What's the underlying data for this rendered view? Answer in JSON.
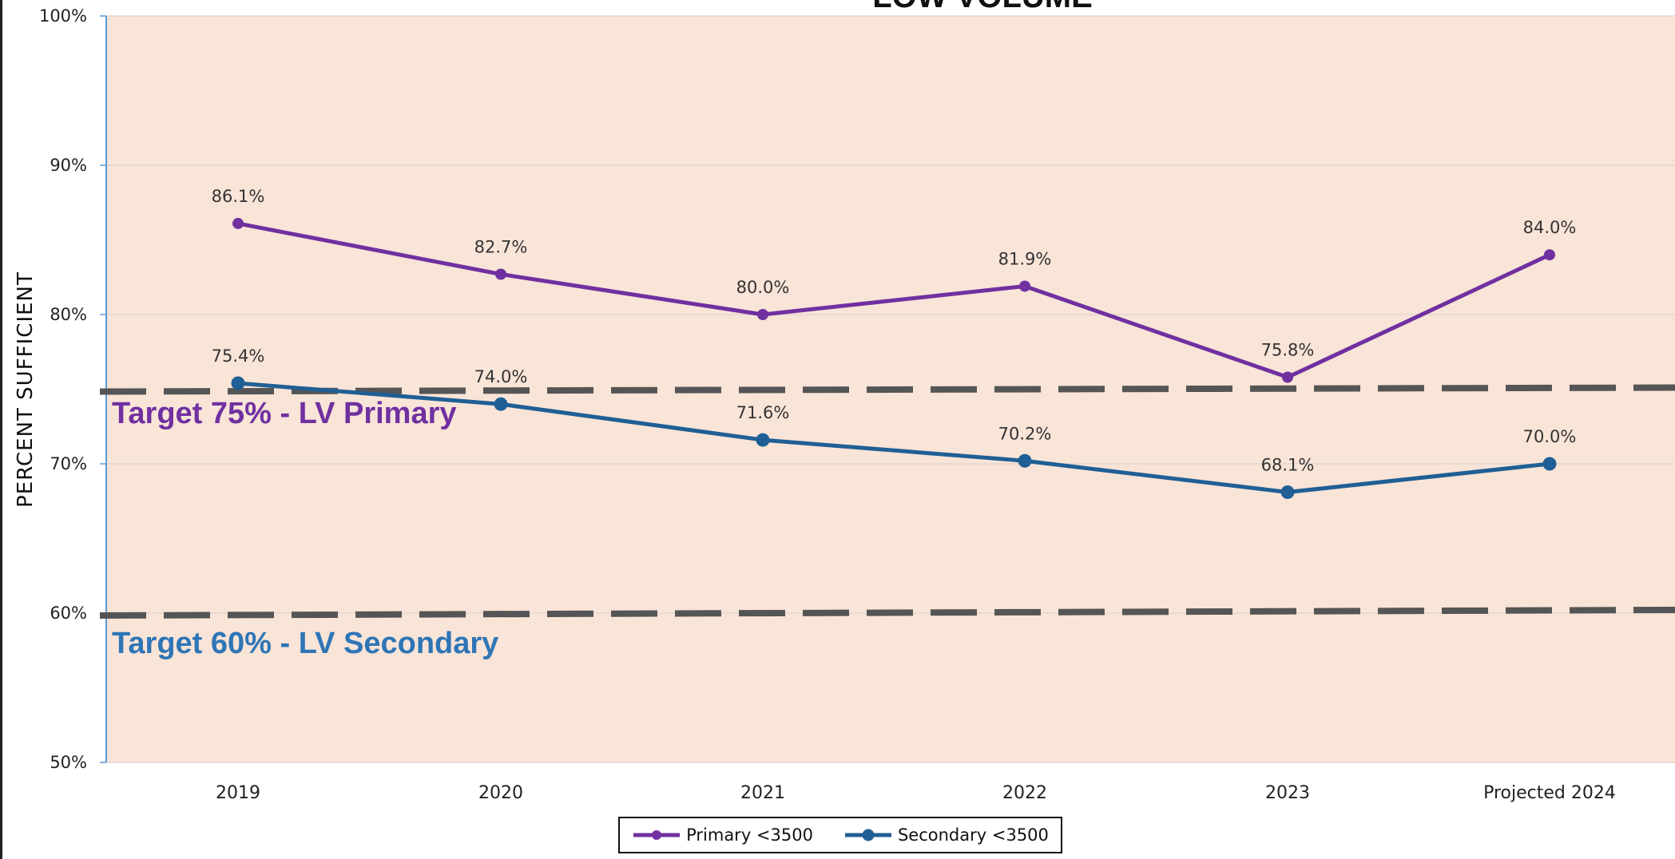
{
  "chart_data": {
    "type": "line",
    "title": "LOW VOLUME",
    "ylabel": "PERCENT SUFFICIENT",
    "xlabel": "",
    "categories": [
      "2019",
      "2020",
      "2021",
      "2022",
      "2023",
      "Projected 2024"
    ],
    "ylim": [
      50,
      100
    ],
    "yticks": [
      "50%",
      "60%",
      "70%",
      "80%",
      "90%",
      "100%"
    ],
    "ytick_values": [
      50,
      60,
      70,
      80,
      90,
      100
    ],
    "grid": true,
    "legend_position": "bottom-center",
    "series": [
      {
        "name": "Primary <3500",
        "values": [
          86.1,
          82.7,
          80.0,
          81.9,
          75.8,
          84.0
        ],
        "labels": [
          "86.1%",
          "82.7%",
          "80.0%",
          "81.9%",
          "75.8%",
          "84.0%"
        ],
        "color": "#7030A0"
      },
      {
        "name": "Secondary <3500",
        "values": [
          75.4,
          74.0,
          71.6,
          70.2,
          68.1,
          70.0
        ],
        "labels": [
          "75.4%",
          "74.0%",
          "71.6%",
          "70.2%",
          "68.1%",
          "70.0%"
        ],
        "color": "#1F5F95"
      }
    ],
    "target_lines": [
      {
        "value": 75,
        "label": "Target 75% - LV Primary",
        "label_color": "#7030A0"
      },
      {
        "value": 60,
        "label": "Target 60% - LV Secondary",
        "label_color": "#2E75B6"
      }
    ],
    "colors": {
      "plot_background": "#F9E4D8",
      "gridline": "#E3D6D0",
      "axis": "#5B9BD5",
      "target_line": "#555555"
    }
  }
}
